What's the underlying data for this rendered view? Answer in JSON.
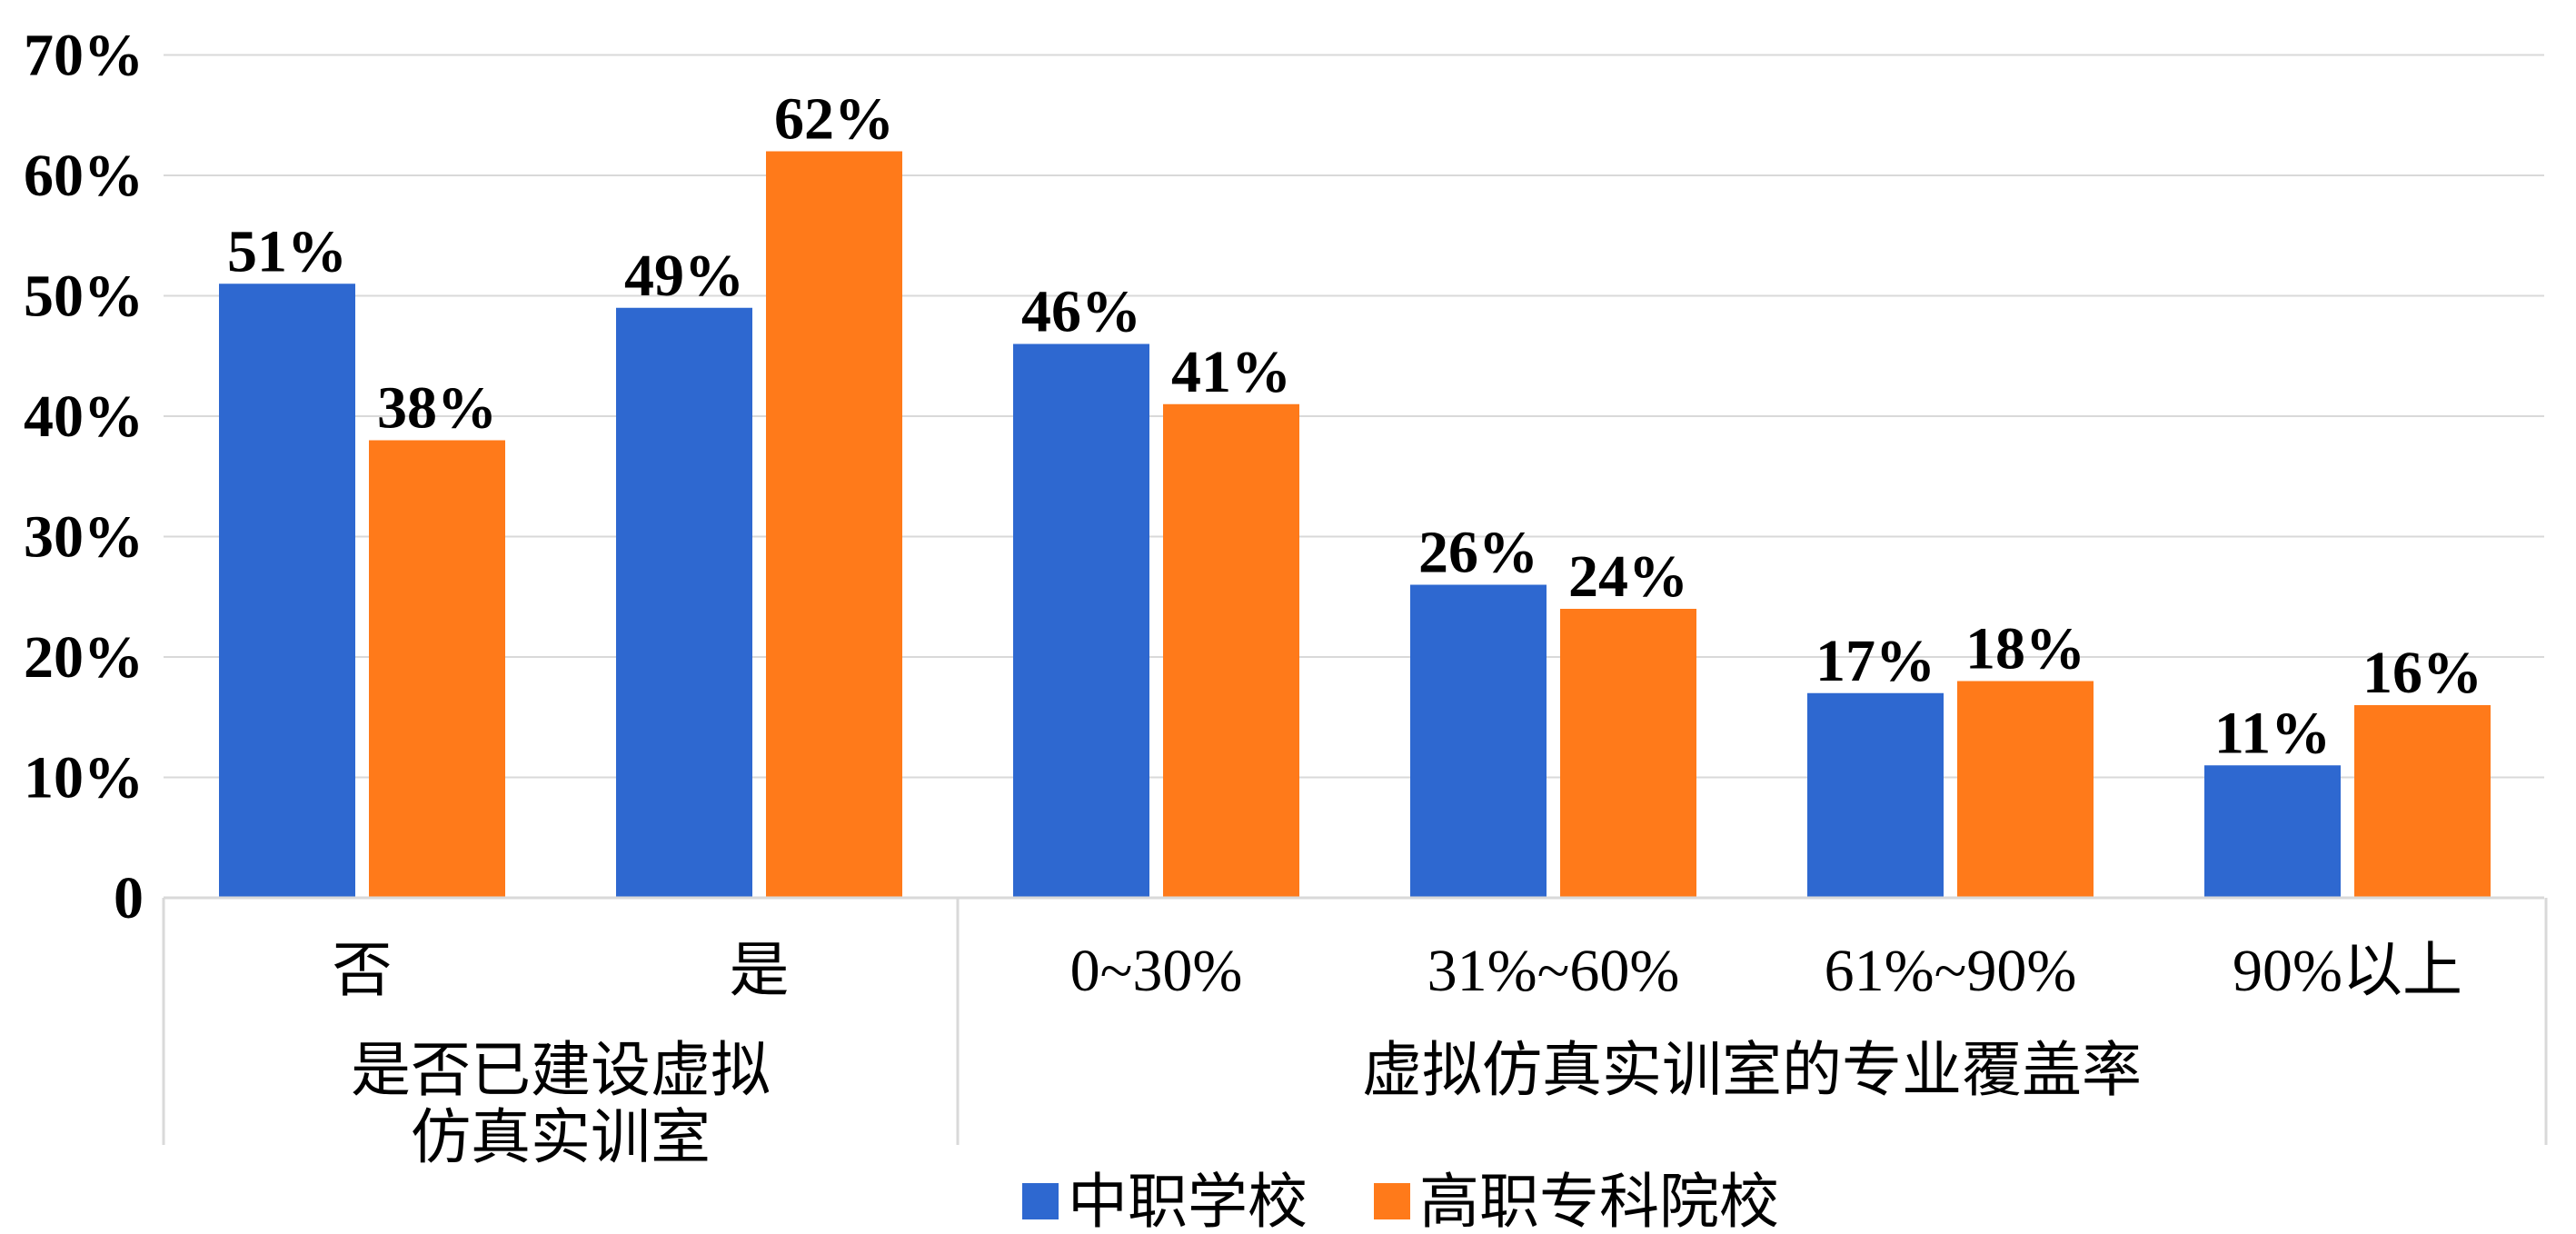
{
  "chart_data": {
    "type": "bar",
    "title": "",
    "xlabel": "",
    "ylabel": "",
    "ylim": [
      0,
      70
    ],
    "y_ticks": [
      {
        "value": 0,
        "label": "0"
      },
      {
        "value": 10,
        "label": "10%"
      },
      {
        "value": 20,
        "label": "20%"
      },
      {
        "value": 30,
        "label": "30%"
      },
      {
        "value": 40,
        "label": "40%"
      },
      {
        "value": 50,
        "label": "50%"
      },
      {
        "value": 60,
        "label": "60%"
      },
      {
        "value": 70,
        "label": "70%"
      }
    ],
    "grid": true,
    "legend_position": "bottom",
    "categories": [
      "否",
      "是",
      "0~30%",
      "31%~60%",
      "61%~90%",
      "90%以上"
    ],
    "groups": [
      {
        "label_lines": [
          "是否已建设虚拟",
          "仿真实训室"
        ],
        "categories": [
          0,
          1
        ]
      },
      {
        "label_lines": [
          "虚拟仿真实训室的专业覆盖率"
        ],
        "categories": [
          2,
          3,
          4,
          5
        ]
      }
    ],
    "series": [
      {
        "name": "中职学校",
        "color": "#2E68D0",
        "values": [
          51,
          49,
          46,
          26,
          17,
          11
        ],
        "labels": [
          "51%",
          "49%",
          "46%",
          "26%",
          "17%",
          "11%"
        ]
      },
      {
        "name": "高职专科院校",
        "color": "#FF7A1A",
        "values": [
          38,
          62,
          41,
          24,
          18,
          16
        ],
        "labels": [
          "38%",
          "62%",
          "41%",
          "24%",
          "18%",
          "16%"
        ]
      }
    ]
  }
}
